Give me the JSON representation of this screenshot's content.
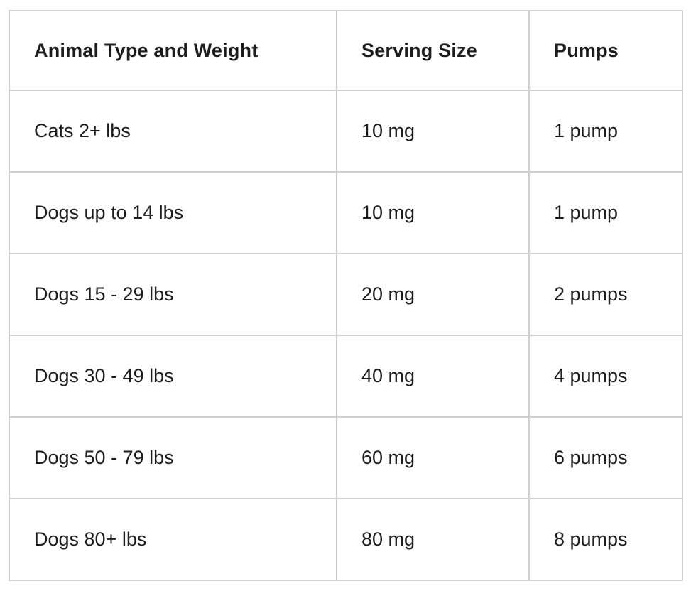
{
  "table": {
    "header": {
      "animal": "Animal Type and Weight",
      "serving": "Serving Size",
      "pumps": "Pumps"
    },
    "rows": [
      {
        "animal": "Cats 2+ lbs",
        "serving": "10 mg",
        "pumps": "1 pump"
      },
      {
        "animal": "Dogs up to 14 lbs",
        "serving": "10 mg",
        "pumps": "1 pump"
      },
      {
        "animal": "Dogs 15 - 29 lbs",
        "serving": "20 mg",
        "pumps": "2 pumps"
      },
      {
        "animal": "Dogs 30 - 49 lbs",
        "serving": "40 mg",
        "pumps": "4 pumps"
      },
      {
        "animal": "Dogs 50 - 79 lbs",
        "serving": "60 mg",
        "pumps": "6 pumps"
      },
      {
        "animal": "Dogs 80+ lbs",
        "serving": "80 mg",
        "pumps": "8 pumps"
      }
    ],
    "colors": {
      "border": "#cfcfcf",
      "text": "#1d1d1d",
      "background": "#ffffff"
    }
  }
}
